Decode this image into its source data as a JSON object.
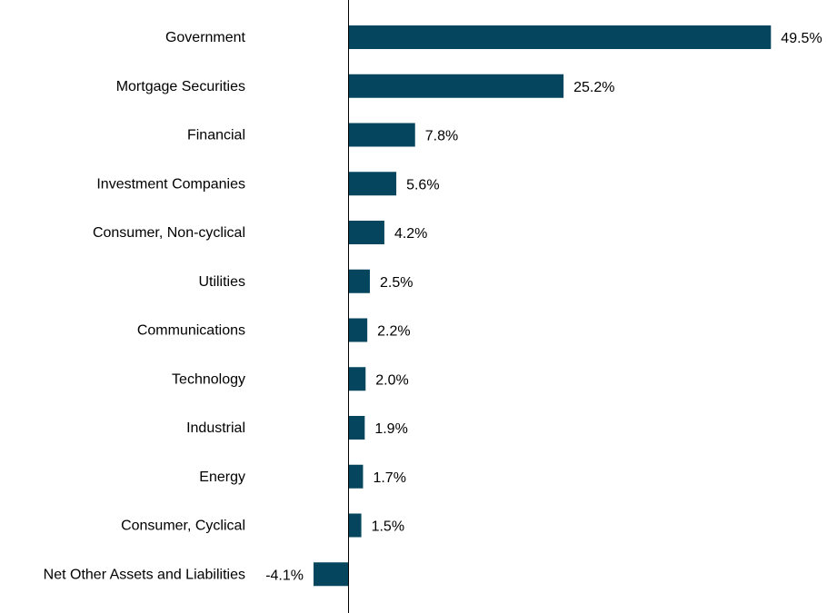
{
  "chart_data": {
    "type": "bar",
    "orientation": "horizontal",
    "categories": [
      "Government",
      "Mortgage Securities",
      "Financial",
      "Investment Companies",
      "Consumer, Non-cyclical",
      "Utilities",
      "Communications",
      "Technology",
      "Industrial",
      "Energy",
      "Consumer, Cyclical",
      "Net Other Assets and Liabilities"
    ],
    "values": [
      49.5,
      25.2,
      7.8,
      5.6,
      4.2,
      2.5,
      2.2,
      2.0,
      1.9,
      1.7,
      1.5,
      -4.1
    ],
    "value_labels": [
      "49.5%",
      "25.2%",
      "7.8%",
      "5.6%",
      "4.2%",
      "2.5%",
      "2.2%",
      "2.0%",
      "1.9%",
      "1.7%",
      "1.5%",
      "-4.1%"
    ],
    "unit": "%",
    "bar_color": "#05465e",
    "grid": false,
    "legend": "none"
  }
}
